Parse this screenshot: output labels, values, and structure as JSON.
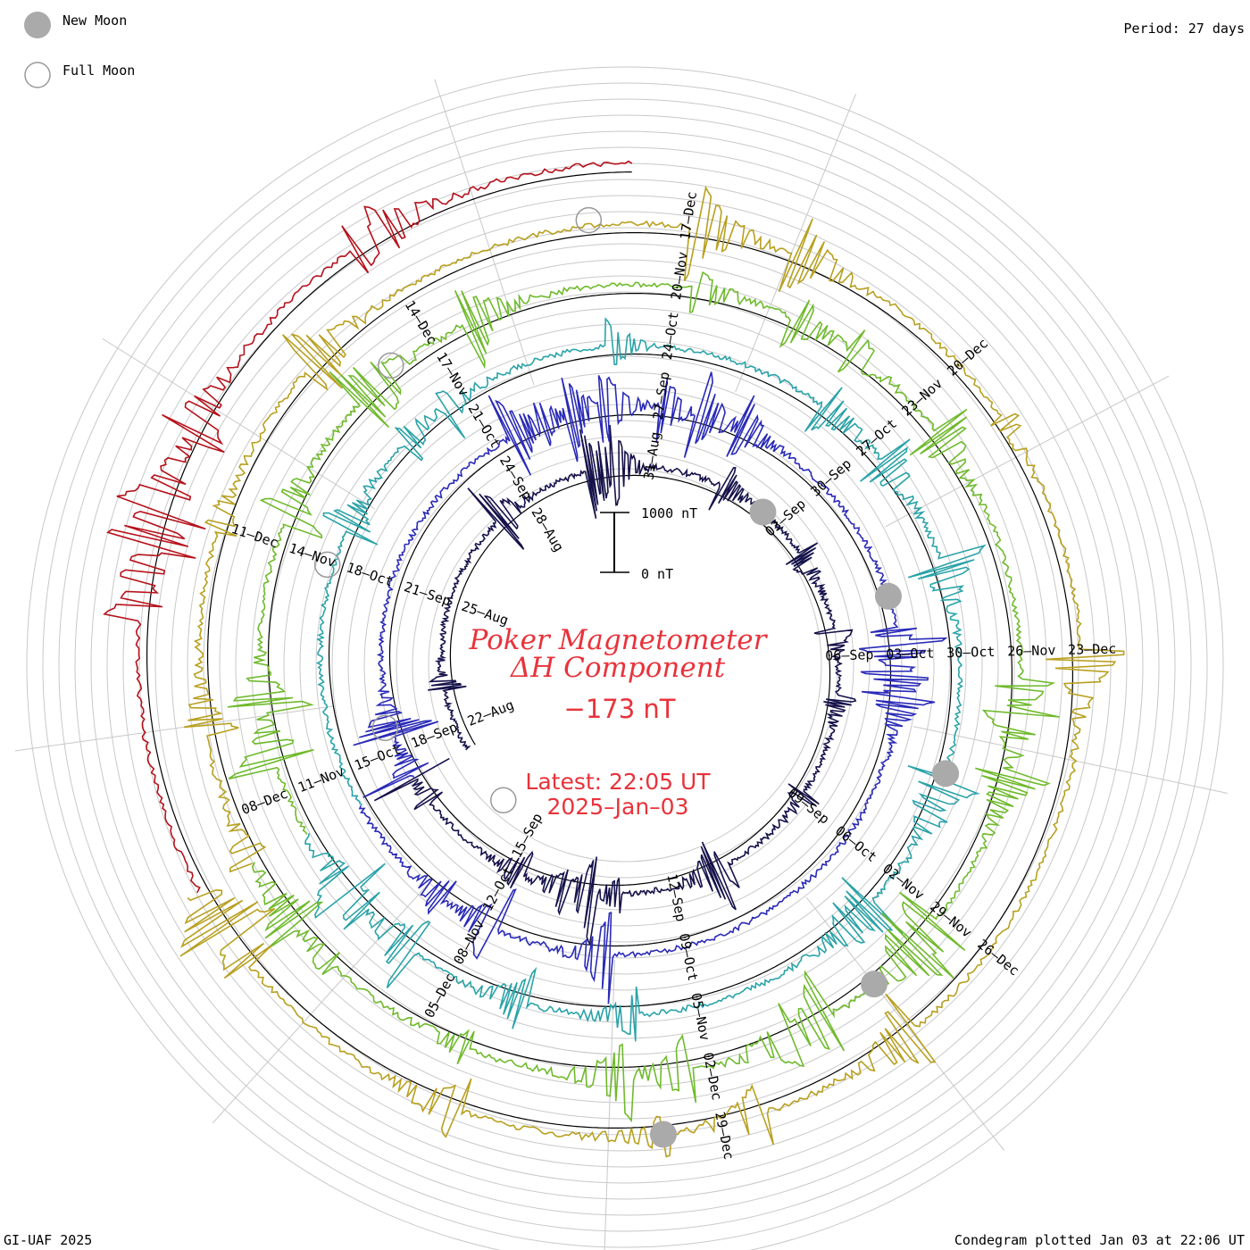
{
  "header": {
    "period": "Period: 27 days"
  },
  "legend": {
    "new_moon": "New Moon",
    "full_moon": "Full Moon"
  },
  "footer": {
    "credit": "GI-UAF 2025",
    "plotted": "Condegram plotted Jan 03 at 22:06 UT"
  },
  "center": {
    "title_line1": "Poker Magnetometer",
    "title_line2": "ΔH Component",
    "current_value": "−173 nT",
    "latest": "Latest: 22:05 UT",
    "date": "2025–Jan–03"
  },
  "scale_bar": {
    "top_label": "1000 nT",
    "bottom_label": "0 nT"
  },
  "chart_data": {
    "type": "line",
    "subtype": "condegram-spiral",
    "period_days": 27,
    "scale_bar_nT": [
      0,
      1000
    ],
    "series": [
      {
        "color": "#15124a",
        "date_labels": [
          "22–Aug",
          "25–Aug",
          "28–Aug",
          "31–Aug",
          "03–Sep",
          "06–Sep",
          "09–Sep",
          "12–Sep",
          "15–Sep"
        ]
      },
      {
        "color": "#2a2ab8",
        "date_labels": [
          "18–Sep",
          "21–Sep",
          "24–Sep",
          "27–Sep",
          "30–Sep",
          "03–Oct",
          "06–Oct",
          "09–Oct",
          "12–Oct"
        ]
      },
      {
        "color": "#2aa3a8",
        "date_labels": [
          "15–Oct",
          "18–Oct",
          "21–Oct",
          "24–Oct",
          "27–Oct",
          "30–Oct",
          "02–Nov",
          "05–Nov",
          "08–Nov"
        ]
      },
      {
        "color": "#6fba2c",
        "date_labels": [
          "11–Nov",
          "14–Nov",
          "17–Nov",
          "20–Nov",
          "23–Nov",
          "26–Nov",
          "29–Nov",
          "02–Dec",
          "05–Dec"
        ]
      },
      {
        "color": "#b8a020",
        "date_labels": [
          "08–Dec",
          "11–Dec",
          "14–Dec",
          "17–Dec",
          "20–Dec",
          "23–Dec",
          "26–Dec",
          "29–Dec"
        ]
      },
      {
        "color": "#b5121b",
        "date_labels": []
      }
    ],
    "new_moon_markers": 5,
    "full_moon_markers": 5,
    "grid": true
  }
}
